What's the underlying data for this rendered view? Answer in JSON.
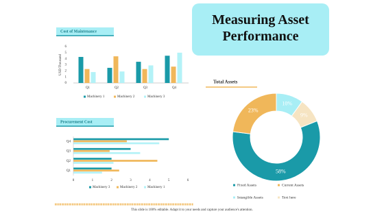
{
  "title": "Measuring Asset Performance",
  "footer": "This slide is 100% editable. Adapt it to your needs and capture your audience's attention.",
  "chart_data": [
    {
      "type": "bar",
      "title": "Cost of Maintenance",
      "y_label": "USD Thousand",
      "categories": [
        "Q1",
        "Q2",
        "Q3",
        "Q4"
      ],
      "series": [
        {
          "name": "Machinery 1",
          "color": "#1a9aa8",
          "values": [
            4.3,
            2.5,
            3.5,
            4.5
          ]
        },
        {
          "name": "Machinery 2",
          "color": "#f0b75a",
          "values": [
            2.3,
            4.4,
            2.3,
            2.7
          ]
        },
        {
          "name": "Machinery 3",
          "color": "#b3f2f7",
          "values": [
            1.8,
            1.9,
            2.9,
            5.0
          ]
        }
      ],
      "ylim": [
        0,
        6
      ],
      "yticks": [
        0,
        1,
        2,
        3,
        4,
        5,
        6
      ]
    },
    {
      "type": "hbar",
      "title": "Procurement Cost",
      "categories": [
        "Q1",
        "Q2",
        "Q3",
        "Q4"
      ],
      "series": [
        {
          "name": "Machinery 3",
          "color": "#1a9aa8",
          "values": [
            2.0,
            2.0,
            3.0,
            5.0
          ]
        },
        {
          "name": "Machinery 2",
          "color": "#f0b75a",
          "values": [
            2.4,
            4.4,
            1.9,
            2.8
          ]
        },
        {
          "name": "Machinery 1",
          "color": "#b3f2f7",
          "values": [
            1.5,
            2.1,
            3.5,
            4.5
          ]
        }
      ],
      "xlim": [
        0,
        6
      ],
      "xticks": [
        0,
        1,
        2,
        3,
        4,
        5,
        6
      ]
    },
    {
      "type": "donut",
      "title": "Total Assets",
      "categories": [
        "Intangible Assets",
        "Text here",
        "Fixed Assets",
        "Current Assets"
      ],
      "values": [
        10,
        9,
        58,
        23
      ],
      "value_labels": [
        "10%",
        "9%",
        "58%",
        "23%"
      ],
      "colors": [
        "#a8eef5",
        "#f6e4c2",
        "#1a9aa8",
        "#f0b75a"
      ]
    }
  ]
}
